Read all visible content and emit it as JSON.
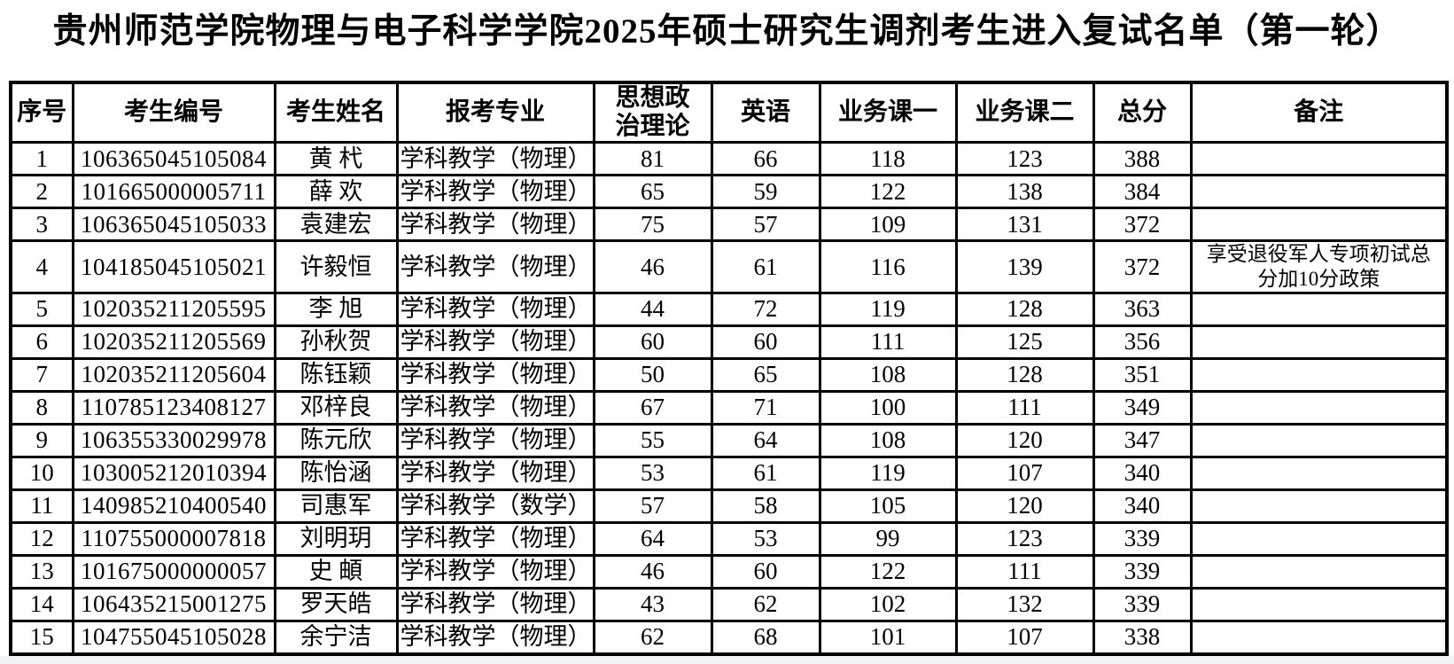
{
  "title": "贵州师范学院物理与电子科学学院2025年硕士研究生调剂考生进入复试名单（第一轮）",
  "table": {
    "columns": [
      {
        "key": "index",
        "label": "序号"
      },
      {
        "key": "id",
        "label": "考生编号"
      },
      {
        "key": "name",
        "label": "考生姓名"
      },
      {
        "key": "major",
        "label": "报考专业"
      },
      {
        "key": "politics",
        "label": "思想政\n治理论"
      },
      {
        "key": "english",
        "label": "英语"
      },
      {
        "key": "course1",
        "label": "业务课一"
      },
      {
        "key": "course2",
        "label": "业务课二"
      },
      {
        "key": "total",
        "label": "总分"
      },
      {
        "key": "remark",
        "label": "备注"
      }
    ],
    "rows": [
      [
        "1",
        "106365045105084",
        "黄 杙",
        "学科教学（物理）",
        "81",
        "66",
        "118",
        "123",
        "388",
        ""
      ],
      [
        "2",
        "101665000005711",
        "薛 欢",
        "学科教学（物理）",
        "65",
        "59",
        "122",
        "138",
        "384",
        ""
      ],
      [
        "3",
        "106365045105033",
        "袁建宏",
        "学科教学（物理）",
        "75",
        "57",
        "109",
        "131",
        "372",
        ""
      ],
      [
        "4",
        "104185045105021",
        "许毅恒",
        "学科教学（物理）",
        "46",
        "61",
        "116",
        "139",
        "372",
        "享受退役军人专项初试总分加10分政策"
      ],
      [
        "5",
        "102035211205595",
        "李 旭",
        "学科教学（物理）",
        "44",
        "72",
        "119",
        "128",
        "363",
        ""
      ],
      [
        "6",
        "102035211205569",
        "孙秋贺",
        "学科教学（物理）",
        "60",
        "60",
        "111",
        "125",
        "356",
        ""
      ],
      [
        "7",
        "102035211205604",
        "陈钰颖",
        "学科教学（物理）",
        "50",
        "65",
        "108",
        "128",
        "351",
        ""
      ],
      [
        "8",
        "110785123408127",
        "邓梓良",
        "学科教学（物理）",
        "67",
        "71",
        "100",
        "111",
        "349",
        ""
      ],
      [
        "9",
        "106355330029978",
        "陈元欣",
        "学科教学（物理）",
        "55",
        "64",
        "108",
        "120",
        "347",
        ""
      ],
      [
        "10",
        "103005212010394",
        "陈怡涵",
        "学科教学（物理）",
        "53",
        "61",
        "119",
        "107",
        "340",
        ""
      ],
      [
        "11",
        "140985210400540",
        "司惠军",
        "学科教学（数学）",
        "57",
        "58",
        "105",
        "120",
        "340",
        ""
      ],
      [
        "12",
        "110755000007818",
        "刘明玥",
        "学科教学（物理）",
        "64",
        "53",
        "99",
        "123",
        "339",
        ""
      ],
      [
        "13",
        "101675000000057",
        "史 頔",
        "学科教学（物理）",
        "46",
        "60",
        "122",
        "111",
        "339",
        ""
      ],
      [
        "14",
        "106435215001275",
        "罗天皓",
        "学科教学（物理）",
        "43",
        "62",
        "102",
        "132",
        "339",
        ""
      ],
      [
        "15",
        "104755045105028",
        "余宁洁",
        "学科教学（物理）",
        "62",
        "68",
        "101",
        "107",
        "338",
        ""
      ]
    ]
  },
  "colors": {
    "border": "#000000",
    "text": "#000000",
    "background": "#ffffff",
    "footer_strip": "#f2f3f4"
  }
}
